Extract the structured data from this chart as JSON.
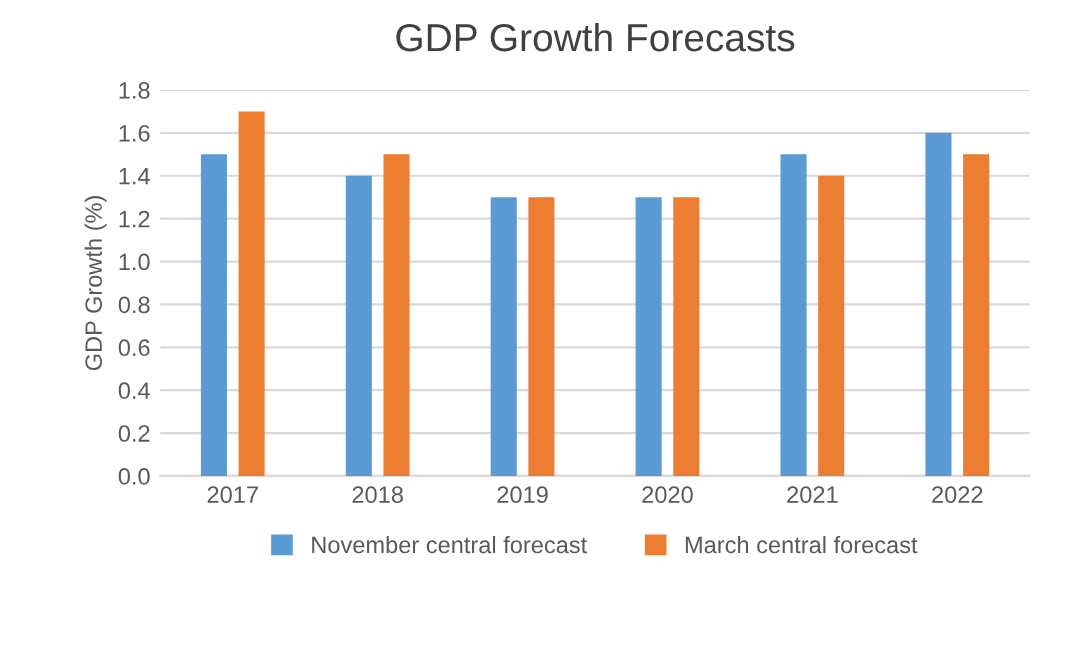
{
  "chart_data": {
    "type": "bar",
    "title": "GDP Growth Forecasts",
    "ylabel": "GDP Growth (%)",
    "categories": [
      "2017",
      "2018",
      "2019",
      "2020",
      "2021",
      "2022"
    ],
    "series": [
      {
        "name": "November central forecast",
        "color": "#5b9bd5",
        "values": [
          1.5,
          1.4,
          1.3,
          1.3,
          1.5,
          1.6
        ]
      },
      {
        "name": "March central forecast",
        "color": "#ed7d31",
        "values": [
          1.7,
          1.5,
          1.3,
          1.3,
          1.4,
          1.5
        ]
      }
    ],
    "ylim": [
      0,
      1.8
    ],
    "yticks": [
      {
        "value": 0,
        "label": "0.0"
      },
      {
        "value": 0.2,
        "label": "0.2"
      },
      {
        "value": 0.4,
        "label": "0.4"
      },
      {
        "value": 0.6,
        "label": "0.6"
      },
      {
        "value": 0.8,
        "label": "0.8"
      },
      {
        "value": 1.0,
        "label": "1.0"
      },
      {
        "value": 1.2,
        "label": "1.2"
      },
      {
        "value": 1.4,
        "label": "1.4"
      },
      {
        "value": 1.6,
        "label": "1.6"
      },
      {
        "value": 1.8,
        "label": "1.8"
      }
    ],
    "grid": "y",
    "legend": "bottom"
  }
}
